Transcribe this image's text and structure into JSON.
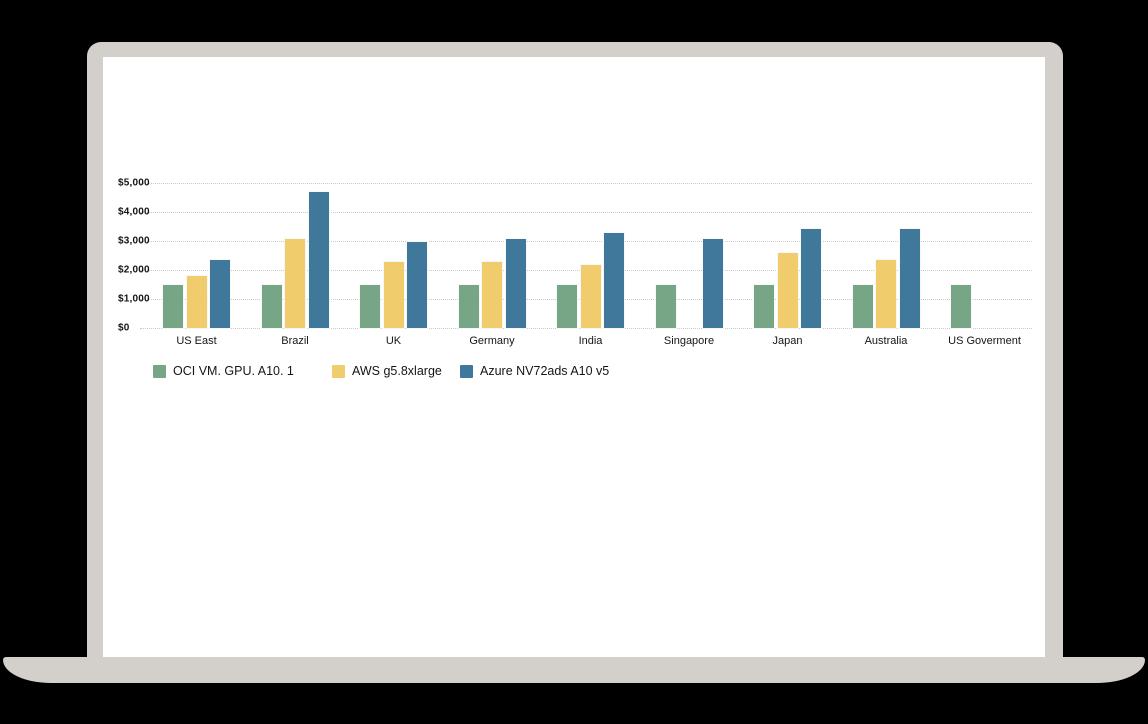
{
  "window": {
    "background_color": "#000000",
    "laptop_bezel_color": "#D3D0CB",
    "laptop_screen_color": "#FFFFFF"
  },
  "chart_data": {
    "type": "bar",
    "title": "",
    "xlabel": "",
    "ylabel": "",
    "categories": [
      "US East",
      "Brazil",
      "UK",
      "Germany",
      "India",
      "Singapore",
      "Japan",
      "Australia",
      "US Goverment"
    ],
    "series": [
      {
        "name": "OCI VM. GPU. A10. 1",
        "color": "#77A686",
        "values": [
          1480,
          1480,
          1480,
          1480,
          1480,
          1480,
          1480,
          1480,
          1480
        ]
      },
      {
        "name": "AWS g5.8xlarge",
        "color": "#F0CC6D",
        "values": [
          1810,
          3080,
          2280,
          2270,
          2160,
          null,
          2600,
          2350,
          null
        ]
      },
      {
        "name": "Azure NV72ads A10 v5",
        "color": "#3F789B",
        "values": [
          2360,
          4700,
          2950,
          3070,
          3290,
          3070,
          3420,
          3420,
          null
        ]
      }
    ],
    "ylim": [
      0,
      5000
    ],
    "yticks": [
      0,
      1000,
      2000,
      3000,
      4000,
      5000
    ],
    "ytick_labels": [
      "$0",
      "$1,000",
      "$2,000",
      "$3,000",
      "$4,000",
      "$5,000"
    ],
    "grid": "horizontal-dotted",
    "gridline_color": "#c9c9c9",
    "axis_text_color": "#161513",
    "legend_position": "bottom-left"
  }
}
